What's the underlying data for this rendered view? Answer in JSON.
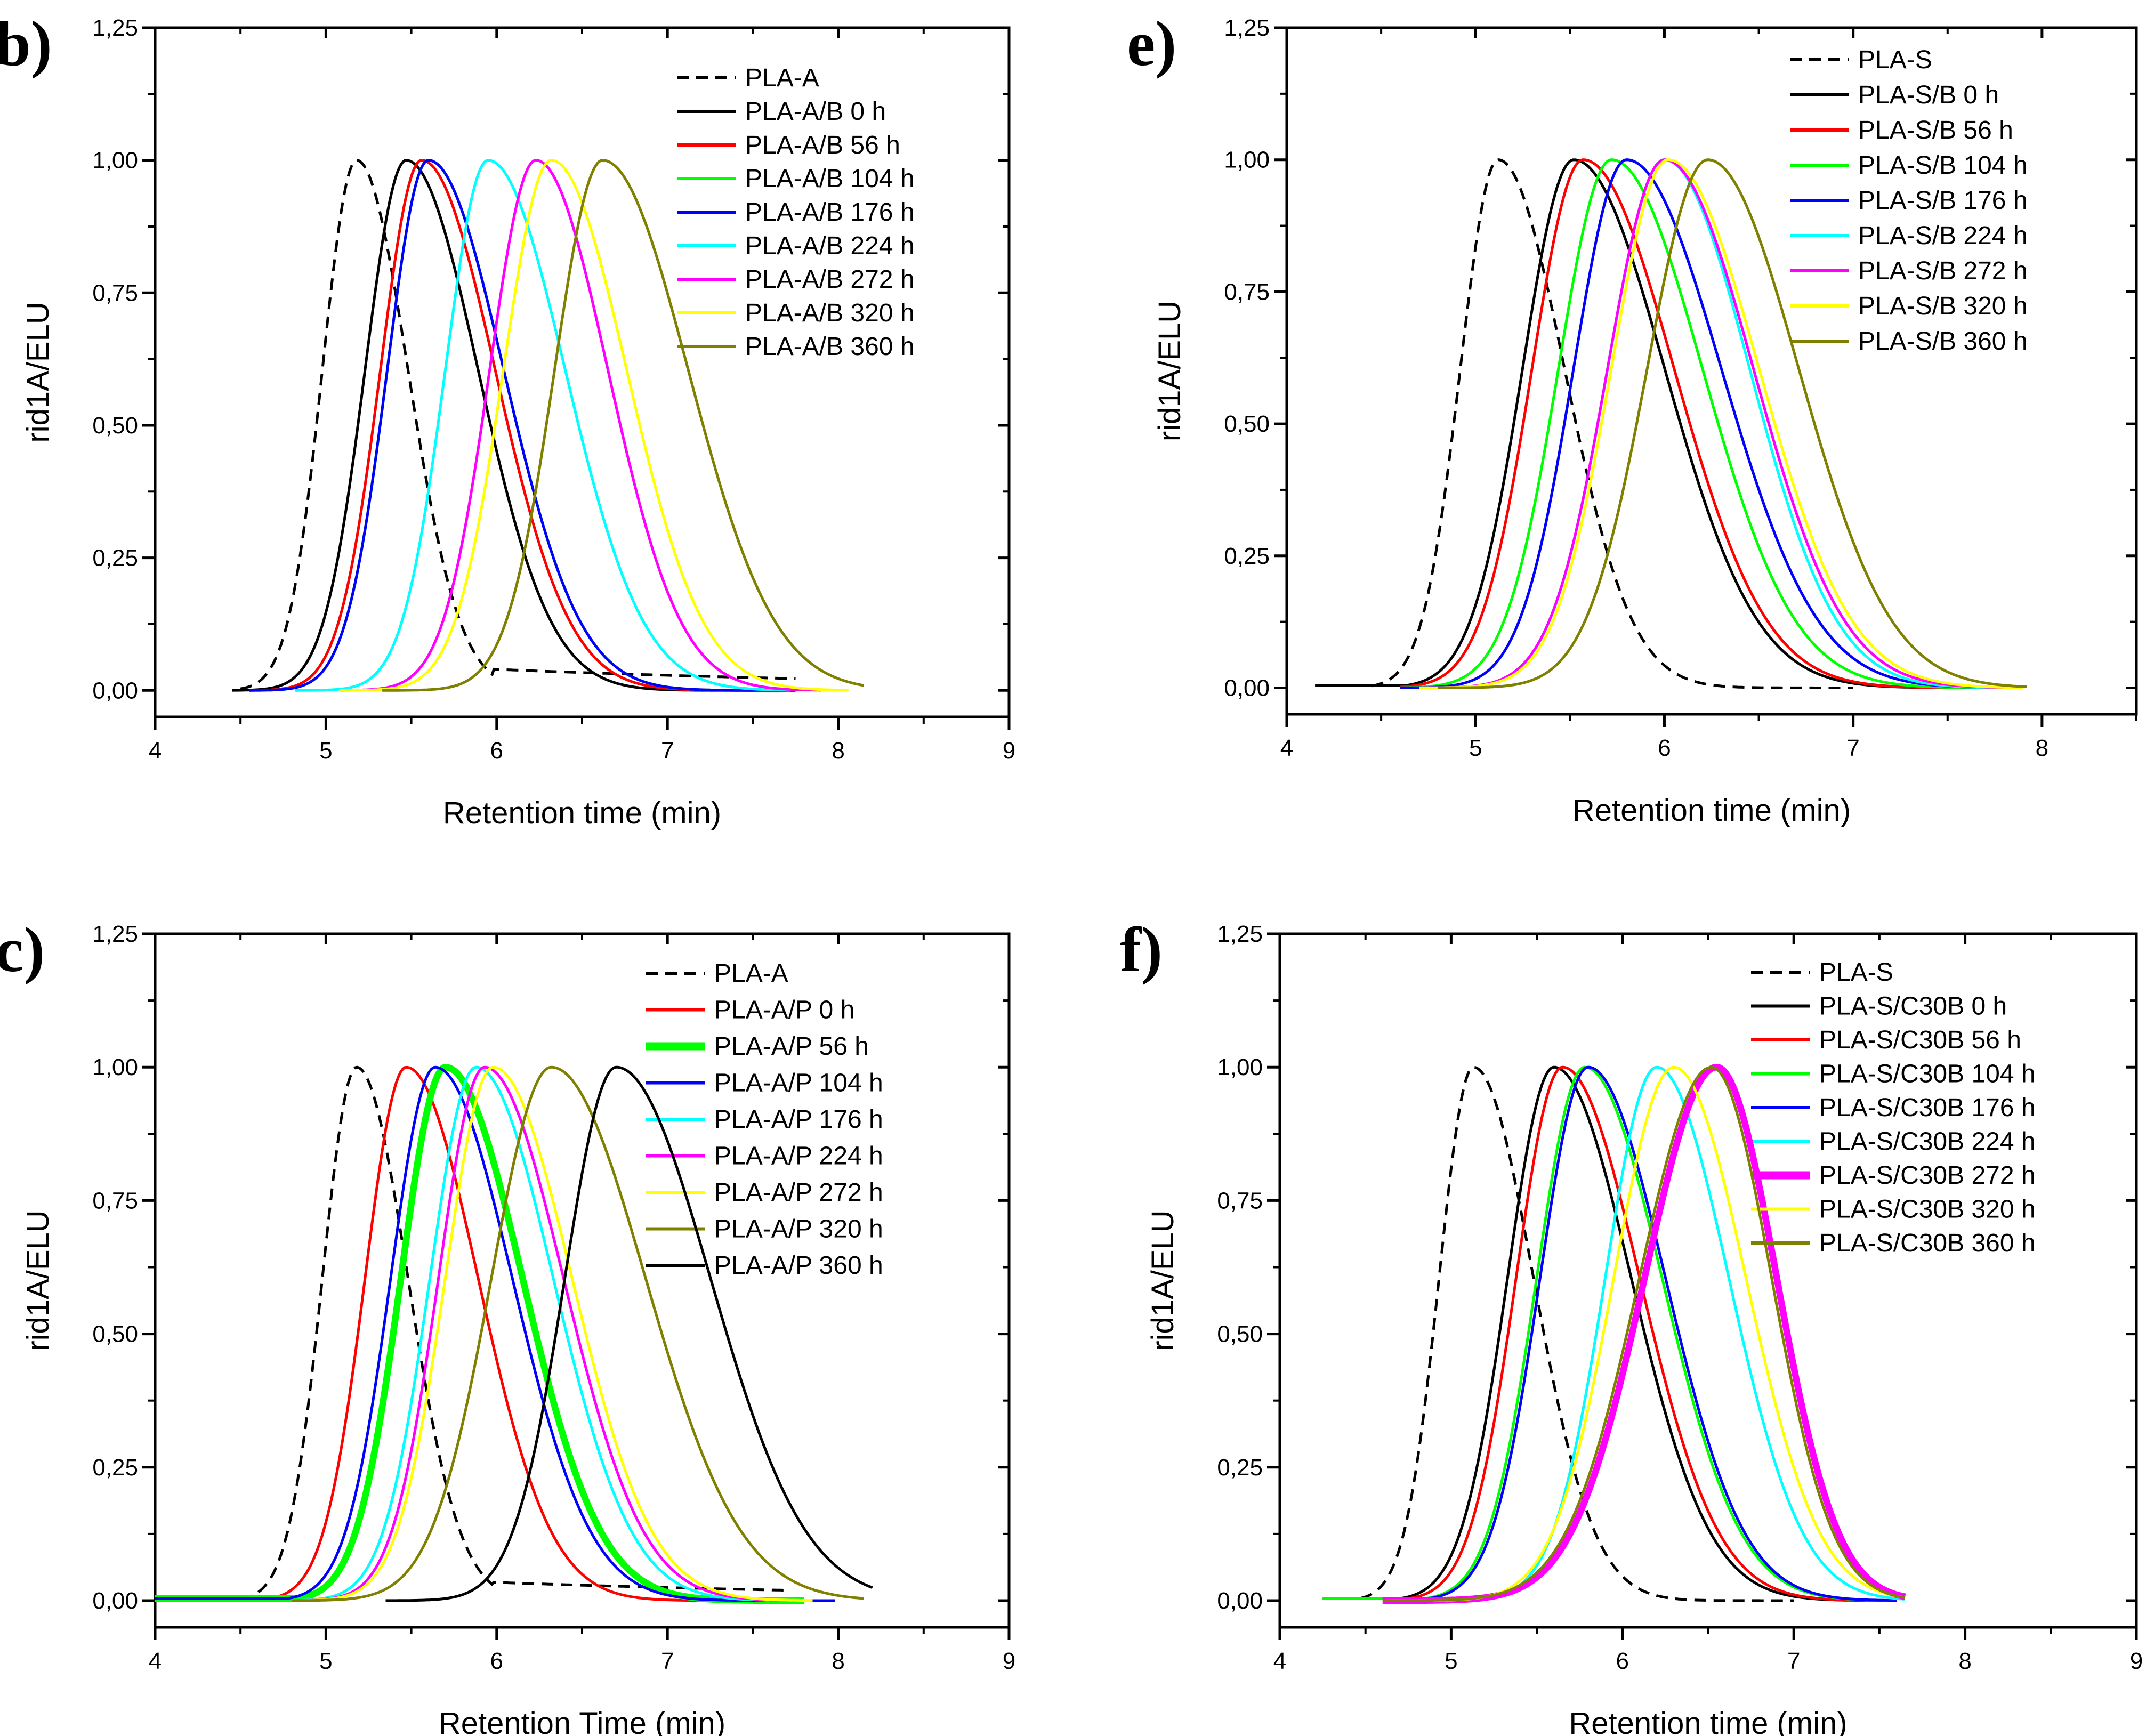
{
  "chart_data": [
    {
      "type": "line",
      "panel_label": "b)",
      "xlabel": "Retention time (min)",
      "ylabel": "rid1A/ELU",
      "xlim": [
        4,
        9
      ],
      "ylim": [
        -0.05,
        1.25
      ],
      "xticks": [
        "4",
        "5",
        "6",
        "7",
        "8",
        "9"
      ],
      "yticks": [
        "0,00",
        "0,25",
        "0,50",
        "0,75",
        "1,00",
        "1,25"
      ],
      "legend_position": "top-right",
      "series": [
        {
          "name": "PLA-A",
          "color": "#000000",
          "dash": true,
          "width": 1,
          "peak": 5.18,
          "sigma_left": 0.2,
          "sigma_right": 0.3,
          "tail": 0.035,
          "start": 4.5,
          "end": 7.75
        },
        {
          "name": "PLA-A/B 0 h",
          "color": "#000000",
          "dash": false,
          "width": 1,
          "peak": 5.47,
          "sigma_left": 0.24,
          "sigma_right": 0.42,
          "start": 4.45,
          "end": 7.75
        },
        {
          "name": "PLA-A/B 56 h",
          "color": "#ff0000",
          "dash": false,
          "width": 1,
          "peak": 5.56,
          "sigma_left": 0.24,
          "sigma_right": 0.43,
          "start": 4.68,
          "end": 7.5
        },
        {
          "name": "PLA-A/B 104 h",
          "color": "#00ff00",
          "dash": false,
          "width": 1,
          "peak": 5.6,
          "sigma_left": 0.24,
          "sigma_right": 0.44,
          "start": 4.55,
          "end": 7.7
        },
        {
          "name": "PLA-A/B 176 h",
          "color": "#0000ff",
          "dash": false,
          "width": 1,
          "peak": 5.6,
          "sigma_left": 0.24,
          "sigma_right": 0.44,
          "start": 4.55,
          "end": 7.7
        },
        {
          "name": "PLA-A/B 224 h",
          "color": "#00ffff",
          "dash": false,
          "width": 1,
          "peak": 5.95,
          "sigma_left": 0.25,
          "sigma_right": 0.45,
          "start": 4.82,
          "end": 7.72
        },
        {
          "name": "PLA-A/B 272 h",
          "color": "#ff00ff",
          "dash": false,
          "width": 1,
          "peak": 6.23,
          "sigma_left": 0.27,
          "sigma_right": 0.42,
          "start": 5.08,
          "end": 7.9
        },
        {
          "name": "PLA-A/B 320 h",
          "color": "#ffff00",
          "dash": false,
          "width": 1,
          "peak": 6.32,
          "sigma_left": 0.28,
          "sigma_right": 0.44,
          "start": 5.08,
          "end": 8.06
        },
        {
          "name": "PLA-A/B 360 h",
          "color": "#808000",
          "dash": false,
          "width": 1,
          "peak": 6.62,
          "sigma_left": 0.28,
          "sigma_right": 0.5,
          "start": 5.33,
          "end": 8.15
        }
      ]
    },
    {
      "type": "line",
      "panel_label": "e)",
      "xlabel": "Retention time (min)",
      "ylabel": "rid1A/ELU",
      "xlim": [
        4,
        8.5
      ],
      "ylim": [
        -0.05,
        1.25
      ],
      "xticks": [
        "4",
        "5",
        "6",
        "7",
        "8"
      ],
      "yticks": [
        "0,00",
        "0,25",
        "0,50",
        "0,75",
        "1,00",
        "1,25"
      ],
      "legend_position": "top-right",
      "series": [
        {
          "name": "PLA-S",
          "color": "#000000",
          "dash": true,
          "width": 1,
          "peak": 5.12,
          "sigma_left": 0.2,
          "sigma_right": 0.35,
          "start": 4.45,
          "end": 7.0
        },
        {
          "name": "PLA-S/B 0 h",
          "color": "#000000",
          "dash": false,
          "width": 1,
          "peak": 5.52,
          "sigma_left": 0.27,
          "sigma_right": 0.48,
          "start": 4.15,
          "end": 7.65
        },
        {
          "name": "PLA-S/B 56 h",
          "color": "#ff0000",
          "dash": false,
          "width": 1,
          "peak": 5.57,
          "sigma_left": 0.27,
          "sigma_right": 0.48,
          "start": 4.6,
          "end": 7.65
        },
        {
          "name": "PLA-S/B 104 h",
          "color": "#00ff00",
          "dash": false,
          "width": 1,
          "peak": 5.72,
          "sigma_left": 0.28,
          "sigma_right": 0.48,
          "start": 4.6,
          "end": 7.7
        },
        {
          "name": "PLA-S/B 176 h",
          "color": "#0000ff",
          "dash": false,
          "width": 1,
          "peak": 5.8,
          "sigma_left": 0.28,
          "sigma_right": 0.5,
          "start": 4.6,
          "end": 7.65
        },
        {
          "name": "PLA-S/B 224 h",
          "color": "#00ffff",
          "dash": false,
          "width": 1,
          "peak": 6.0,
          "sigma_left": 0.3,
          "sigma_right": 0.45,
          "start": 4.7,
          "end": 7.9
        },
        {
          "name": "PLA-S/B 272 h",
          "color": "#ff00ff",
          "dash": false,
          "width": 1,
          "peak": 6.0,
          "sigma_left": 0.3,
          "sigma_right": 0.47,
          "start": 4.7,
          "end": 7.9
        },
        {
          "name": "PLA-S/B 320 h",
          "color": "#ffff00",
          "dash": false,
          "width": 1,
          "peak": 6.02,
          "sigma_left": 0.3,
          "sigma_right": 0.48,
          "start": 4.7,
          "end": 7.9
        },
        {
          "name": "PLA-S/B 360 h",
          "color": "#808000",
          "dash": false,
          "width": 1,
          "peak": 6.23,
          "sigma_left": 0.32,
          "sigma_right": 0.48,
          "start": 4.8,
          "end": 7.92
        }
      ]
    },
    {
      "type": "line",
      "panel_label": "c)",
      "xlabel": "Retention Time (min)",
      "ylabel": "rid1A/ELU",
      "xlim": [
        4,
        9
      ],
      "ylim": [
        -0.05,
        1.25
      ],
      "xticks": [
        "4",
        "5",
        "6",
        "7",
        "8",
        "9"
      ],
      "yticks": [
        "0,00",
        "0,25",
        "0,50",
        "0,75",
        "1,00",
        "1,25"
      ],
      "legend_position": "top-right",
      "series": [
        {
          "name": "PLA-A",
          "color": "#000000",
          "dash": true,
          "width": 1,
          "peak": 5.18,
          "sigma_left": 0.2,
          "sigma_right": 0.3,
          "tail": 0.03,
          "start": 4.5,
          "end": 7.7
        },
        {
          "name": "PLA-A/P 0 h",
          "color": "#ff0000",
          "dash": false,
          "width": 1,
          "peak": 5.47,
          "sigma_left": 0.24,
          "sigma_right": 0.42,
          "start": 4.0,
          "end": 7.75
        },
        {
          "name": "PLA-A/P 56 h",
          "color": "#00ff00",
          "dash": false,
          "width": 2.5,
          "peak": 5.7,
          "sigma_left": 0.26,
          "sigma_right": 0.45,
          "start": 4.0,
          "end": 7.8
        },
        {
          "name": "PLA-A/P 104 h",
          "color": "#0000ff",
          "dash": false,
          "width": 1,
          "peak": 5.64,
          "sigma_left": 0.26,
          "sigma_right": 0.45,
          "start": 4.0,
          "end": 7.98
        },
        {
          "name": "PLA-A/P 176 h",
          "color": "#00ffff",
          "dash": false,
          "width": 1,
          "peak": 5.88,
          "sigma_left": 0.27,
          "sigma_right": 0.45,
          "start": 4.8,
          "end": 7.8
        },
        {
          "name": "PLA-A/P 224 h",
          "color": "#ff00ff",
          "dash": false,
          "width": 1,
          "peak": 5.93,
          "sigma_left": 0.27,
          "sigma_right": 0.46,
          "start": 4.8,
          "end": 7.8
        },
        {
          "name": "PLA-A/P 272 h",
          "color": "#ffff00",
          "dash": false,
          "width": 1,
          "peak": 5.98,
          "sigma_left": 0.28,
          "sigma_right": 0.46,
          "start": 4.8,
          "end": 7.85
        },
        {
          "name": "PLA-A/P 320 h",
          "color": "#808000",
          "dash": false,
          "width": 1,
          "peak": 6.32,
          "sigma_left": 0.35,
          "sigma_right": 0.55,
          "start": 4.8,
          "end": 8.15
        },
        {
          "name": "PLA-A/P 360 h",
          "color": "#000000",
          "dash": false,
          "width": 1,
          "peak": 6.7,
          "sigma_left": 0.3,
          "sigma_right": 0.55,
          "start": 5.35,
          "end": 8.2
        }
      ]
    },
    {
      "type": "line",
      "panel_label": "f)",
      "xlabel": "Retention time (min)",
      "ylabel": "rid1A/ELU",
      "xlim": [
        4,
        9
      ],
      "ylim": [
        -0.05,
        1.25
      ],
      "xticks": [
        "4",
        "5",
        "6",
        "7",
        "8",
        "9"
      ],
      "yticks": [
        "0,00",
        "0,25",
        "0,50",
        "0,75",
        "1,00",
        "1,25"
      ],
      "legend_position": "top-right",
      "series": [
        {
          "name": "PLA-S",
          "color": "#000000",
          "dash": true,
          "width": 1,
          "peak": 5.13,
          "sigma_left": 0.2,
          "sigma_right": 0.35,
          "start": 4.25,
          "end": 7.0
        },
        {
          "name": "PLA-S/C30B 0 h",
          "color": "#000000",
          "dash": false,
          "width": 1,
          "peak": 5.6,
          "sigma_left": 0.27,
          "sigma_right": 0.45,
          "start": 4.6,
          "end": 7.6
        },
        {
          "name": "PLA-S/C30B 56 h",
          "color": "#ff0000",
          "dash": false,
          "width": 1,
          "peak": 5.65,
          "sigma_left": 0.27,
          "sigma_right": 0.45,
          "start": 4.6,
          "end": 7.6
        },
        {
          "name": "PLA-S/C30B 104 h",
          "color": "#00ff00",
          "dash": false,
          "width": 1,
          "peak": 5.78,
          "sigma_left": 0.28,
          "sigma_right": 0.45,
          "start": 4.25,
          "end": 7.6
        },
        {
          "name": "PLA-S/C30B 176 h",
          "color": "#0000ff",
          "dash": false,
          "width": 1,
          "peak": 5.8,
          "sigma_left": 0.28,
          "sigma_right": 0.45,
          "start": 4.6,
          "end": 7.6
        },
        {
          "name": "PLA-S/C30B 224 h",
          "color": "#00ffff",
          "dash": false,
          "width": 1,
          "peak": 6.2,
          "sigma_left": 0.3,
          "sigma_right": 0.42,
          "start": 4.6,
          "end": 7.65
        },
        {
          "name": "PLA-S/C30B 272 h",
          "color": "#ff00ff",
          "dash": false,
          "width": 2.5,
          "peak": 6.55,
          "sigma_left": 0.42,
          "sigma_right": 0.35,
          "start": 4.6,
          "end": 7.65
        },
        {
          "name": "PLA-S/C30B 320 h",
          "color": "#ffff00",
          "dash": false,
          "width": 1,
          "peak": 6.3,
          "sigma_left": 0.35,
          "sigma_right": 0.42,
          "start": 4.6,
          "end": 7.65
        },
        {
          "name": "PLA-S/C30B 360 h",
          "color": "#808000",
          "dash": false,
          "width": 1,
          "peak": 6.52,
          "sigma_left": 0.42,
          "sigma_right": 0.35,
          "start": 4.6,
          "end": 7.65
        }
      ]
    }
  ]
}
